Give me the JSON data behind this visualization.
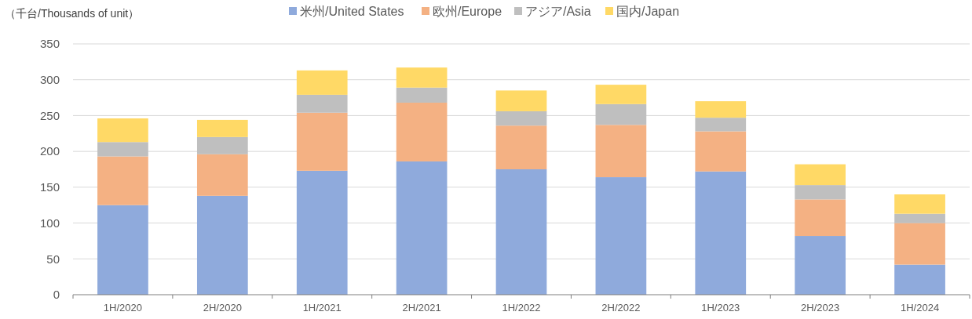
{
  "chart_data": {
    "type": "bar",
    "ylabel": "（千台/Thousands of unit）",
    "stacked": true,
    "categories": [
      "1H/2020",
      "2H/2020",
      "1H/2021",
      "2H/2021",
      "1H/2022",
      "2H/2022",
      "1H/2023",
      "2H/2023",
      "1H/2024"
    ],
    "series": [
      {
        "name": "米州/United States",
        "color": "#8faadc",
        "values": [
          125,
          138,
          173,
          186,
          175,
          164,
          172,
          82,
          42
        ]
      },
      {
        "name": "欧州/Europe",
        "color": "#f4b183",
        "values": [
          68,
          58,
          81,
          82,
          61,
          73,
          56,
          51,
          58
        ]
      },
      {
        "name": "アジア/Asia",
        "color": "#bfbfbf",
        "values": [
          20,
          24,
          25,
          21,
          20,
          29,
          19,
          20,
          13
        ]
      },
      {
        "name": "国内/Japan",
        "color": "#ffd966",
        "values": [
          33,
          24,
          34,
          28,
          29,
          27,
          23,
          29,
          27
        ]
      }
    ],
    "ylim": [
      0,
      350
    ],
    "yticks": [
      0,
      50,
      100,
      150,
      200,
      250,
      300,
      350
    ],
    "grid": "y",
    "legend": "top"
  }
}
